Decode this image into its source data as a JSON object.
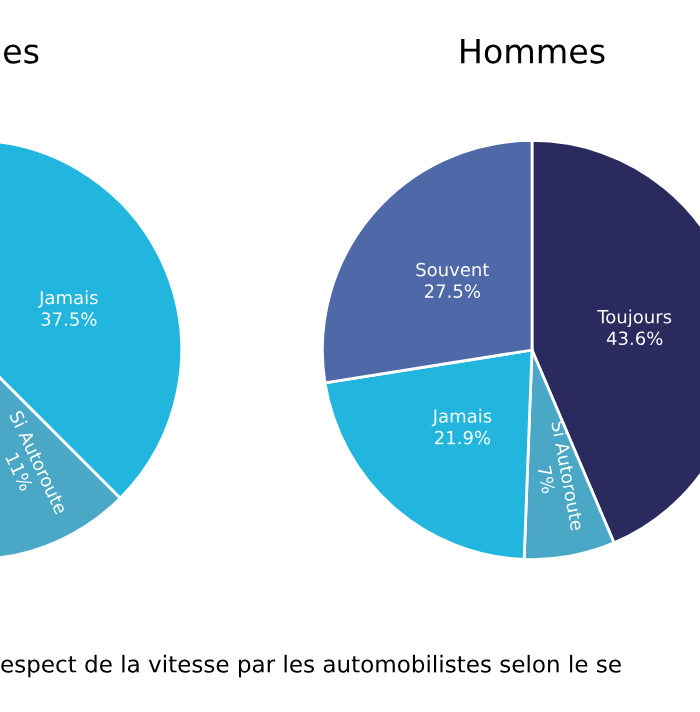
{
  "chart_data": [
    {
      "type": "pie",
      "title": "es",
      "categories": [
        "Jamais",
        "Si Autoroute"
      ],
      "values": [
        37.5,
        11
      ],
      "colors": [
        "#22b5dd",
        "#4aa8c6"
      ],
      "value_labels": [
        "37.5%",
        "11%"
      ],
      "annotations": [
        "espect de la vitesse par les automobilistes selon le se"
      ]
    },
    {
      "type": "pie",
      "title": "Hommes",
      "categories": [
        "Toujours",
        "Si Autoroute",
        "Jamais",
        "Souvent"
      ],
      "values": [
        43.6,
        7,
        21.9,
        27.5
      ],
      "colors": [
        "#2b2a5e",
        "#4aa8c6",
        "#22b5dd",
        "#4f69a8"
      ],
      "value_labels": [
        "43.6%",
        "7%",
        "21.9%",
        "27.5%"
      ]
    }
  ]
}
